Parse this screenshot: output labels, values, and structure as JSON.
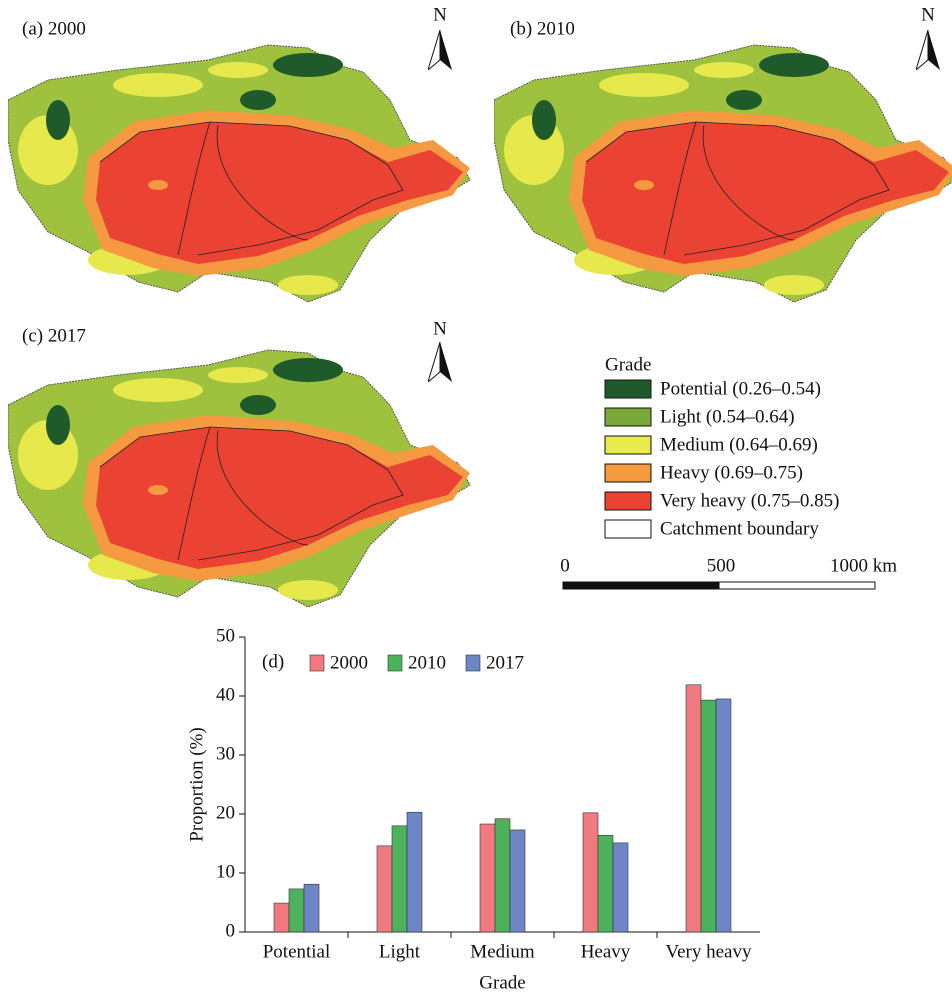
{
  "maps": [
    {
      "label": "(a) 2000",
      "north": "N"
    },
    {
      "label": "(b) 2010",
      "north": "N"
    },
    {
      "label": "(c) 2017",
      "north": "N"
    }
  ],
  "legend": {
    "title": "Grade",
    "items": [
      {
        "label": "Potential (0.26–0.54)",
        "color": "#1f5a2b"
      },
      {
        "label": "Light (0.54–0.64)",
        "color": "#7ba83a"
      },
      {
        "label": "Medium (0.64–0.69)",
        "color": "#e8ea4e"
      },
      {
        "label": "Heavy (0.69–0.75)",
        "color": "#f59a40"
      },
      {
        "label": "Very heavy (0.75–0.85)",
        "color": "#ea4333"
      },
      {
        "label": "Catchment boundary",
        "color": "#ffffff"
      }
    ]
  },
  "scale_bar": {
    "ticks": [
      {
        "value": 0,
        "label": "0"
      },
      {
        "value": 500,
        "label": "500"
      },
      {
        "value": 1000,
        "label": "1000 km"
      }
    ]
  },
  "chart_data": {
    "type": "bar",
    "panel_label": "(d)",
    "x_label": "Grade",
    "y_label": "Proportion (%)",
    "categories": [
      "Potential",
      "Light",
      "Medium",
      "Heavy",
      "Very heavy"
    ],
    "series": [
      {
        "name": "2000",
        "color": "#f07a7f",
        "values": [
          4.9,
          14.6,
          18.3,
          20.2,
          41.9
        ]
      },
      {
        "name": "2010",
        "color": "#4cb35c",
        "values": [
          7.3,
          18.0,
          19.2,
          16.4,
          39.3
        ]
      },
      {
        "name": "2017",
        "color": "#6f86c6",
        "values": [
          8.1,
          20.3,
          17.3,
          15.1,
          39.5
        ]
      }
    ],
    "ylim": [
      0,
      50
    ],
    "yticks": [
      0,
      10,
      20,
      30,
      40,
      50
    ]
  }
}
